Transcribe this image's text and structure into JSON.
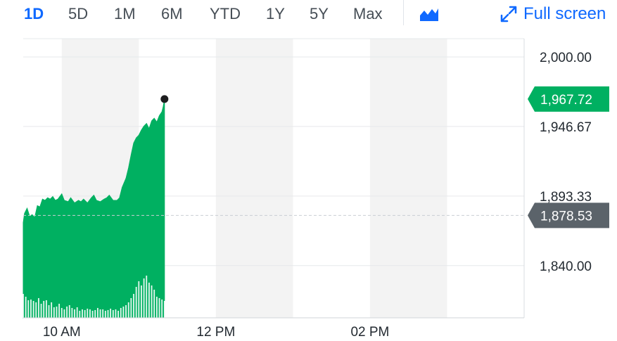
{
  "toolbar": {
    "ranges": [
      "1D",
      "5D",
      "1M",
      "6M",
      "YTD",
      "1Y",
      "5Y",
      "Max"
    ],
    "active_range": "1D",
    "chart_type_icon": "mountain-chart-icon",
    "fullscreen_icon": "expand-arrows-icon",
    "fullscreen_label": "Full screen"
  },
  "colors": {
    "accent": "#0f69ff",
    "area_fill": "#00b061",
    "current_tag": "#00b061",
    "previous_close_tag": "#5b636a",
    "shade": "#f3f3f3",
    "grid": "#e6e8eb"
  },
  "chart_data": {
    "type": "area",
    "title": "",
    "xlabel": "",
    "ylabel": "",
    "ylim": [
      1800,
      2014
    ],
    "yticks": [
      2000.0,
      1946.67,
      1893.33,
      1840.0
    ],
    "ytick_labels": [
      "2,000.00",
      "1,946.67",
      "1,893.33",
      "1,840.00"
    ],
    "xticks": [
      {
        "time": "10:00",
        "label": "10 AM"
      },
      {
        "time": "12:00",
        "label": "12 PM"
      },
      {
        "time": "14:00",
        "label": "02 PM"
      }
    ],
    "x_range": [
      "09:30",
      "16:00"
    ],
    "shaded_hours": [
      [
        "10:00",
        "11:00"
      ],
      [
        "12:00",
        "13:00"
      ],
      [
        "14:00",
        "15:00"
      ]
    ],
    "current": {
      "value": 1967.72,
      "label": "1,967.72"
    },
    "previous_close": {
      "value": 1878.53,
      "label": "1,878.53"
    },
    "series": [
      {
        "times": [
          "09:30",
          "09:31",
          "09:33",
          "09:35",
          "09:37",
          "09:39",
          "09:41",
          "09:43",
          "09:45",
          "09:47",
          "09:49",
          "09:51",
          "09:53",
          "09:55",
          "09:57",
          "10:00",
          "10:02",
          "10:05",
          "10:07",
          "10:10",
          "10:13",
          "10:15",
          "10:17",
          "10:20",
          "10:23",
          "10:25",
          "10:27",
          "10:30",
          "10:33",
          "10:35",
          "10:37",
          "10:40",
          "10:43",
          "10:45",
          "10:47",
          "10:50",
          "10:52",
          "10:54",
          "10:56",
          "10:58",
          "11:00",
          "11:02",
          "11:04",
          "11:06",
          "11:08",
          "11:10",
          "11:12",
          "11:14",
          "11:16",
          "11:18",
          "11:19",
          "11:20"
        ],
        "values": [
          1873,
          1880,
          1884,
          1878,
          1879,
          1877,
          1886,
          1885,
          1891,
          1890,
          1892,
          1891,
          1893,
          1890,
          1891,
          1895,
          1890,
          1889,
          1892,
          1888,
          1890,
          1889,
          1891,
          1888,
          1892,
          1894,
          1890,
          1889,
          1891,
          1892,
          1894,
          1890,
          1890,
          1892,
          1900,
          1907,
          1915,
          1925,
          1934,
          1938,
          1940,
          1944,
          1947,
          1949,
          1945,
          1951,
          1953,
          1950,
          1955,
          1958,
          1962,
          1967.72
        ]
      }
    ],
    "volume": {
      "times": [
        "09:30",
        "09:32",
        "09:34",
        "09:36",
        "09:38",
        "09:40",
        "09:42",
        "09:44",
        "09:46",
        "09:48",
        "09:50",
        "09:52",
        "09:54",
        "09:56",
        "09:58",
        "10:00",
        "10:02",
        "10:04",
        "10:06",
        "10:08",
        "10:10",
        "10:12",
        "10:14",
        "10:16",
        "10:18",
        "10:20",
        "10:22",
        "10:24",
        "10:26",
        "10:28",
        "10:30",
        "10:32",
        "10:34",
        "10:36",
        "10:38",
        "10:40",
        "10:42",
        "10:44",
        "10:46",
        "10:48",
        "10:50",
        "10:52",
        "10:54",
        "10:56",
        "10:58",
        "11:00",
        "11:02",
        "11:04",
        "11:06",
        "11:08",
        "11:10",
        "11:12",
        "11:14",
        "11:16",
        "11:18",
        "11:20"
      ],
      "values": [
        34,
        30,
        25,
        26,
        24,
        22,
        28,
        20,
        24,
        25,
        18,
        22,
        15,
        16,
        20,
        14,
        12,
        16,
        18,
        14,
        12,
        15,
        10,
        12,
        11,
        13,
        12,
        10,
        11,
        14,
        12,
        12,
        10,
        11,
        13,
        11,
        12,
        10,
        14,
        16,
        18,
        22,
        28,
        34,
        44,
        52,
        46,
        56,
        60,
        50,
        46,
        40,
        30,
        28,
        26,
        24
      ]
    }
  }
}
